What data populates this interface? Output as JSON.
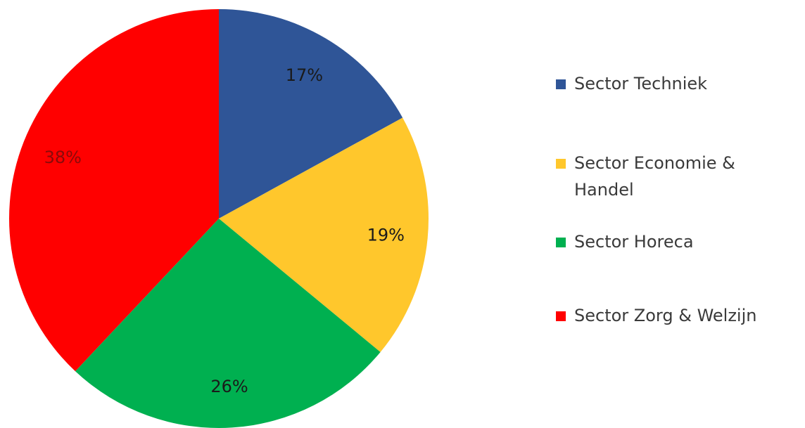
{
  "chart_data": {
    "type": "pie",
    "title": "",
    "slices": [
      {
        "label": "Sector Techniek",
        "value": 17,
        "display": "17%",
        "color": "#2f5597"
      },
      {
        "label": "Sector Economie & Handel",
        "value": 19,
        "display": "19%",
        "color": "#ffc72c"
      },
      {
        "label": "Sector Horeca",
        "value": 26,
        "display": "26%",
        "color": "#00b050"
      },
      {
        "label": "Sector Zorg & Welzijn",
        "value": 38,
        "display": "38%",
        "color": "#ff0000"
      }
    ],
    "start_angle_deg": 0,
    "direction": "clockwise",
    "legend_position": "right"
  }
}
